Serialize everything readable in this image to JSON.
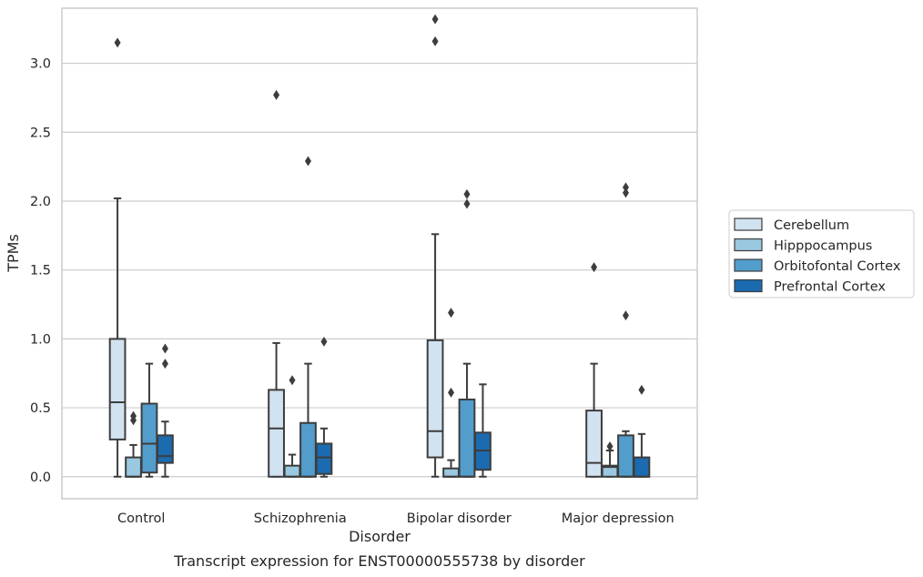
{
  "chart_data": {
    "type": "box",
    "title": "",
    "caption": "Transcript expression for ENST00000555738 by disorder",
    "xlabel": "Disorder",
    "ylabel": "TPMs",
    "categories": [
      "Control",
      "Schizophrenia",
      "Bipolar disorder",
      "Major depression"
    ],
    "ylim": [
      -0.16,
      3.4
    ],
    "yticks": [
      "0.0",
      "0.5",
      "1.0",
      "1.5",
      "2.0",
      "2.5",
      "3.0"
    ],
    "grid": "horizontal",
    "legend_position": "right",
    "series": [
      {
        "name": "Cerebellum",
        "color": "#d1e2f1",
        "boxes": [
          {
            "whislo": 0.0,
            "q1": 0.27,
            "med": 0.54,
            "q3": 1.0,
            "whishi": 2.02,
            "fliers": [
              3.15
            ]
          },
          {
            "whislo": 0.0,
            "q1": 0.0,
            "med": 0.35,
            "q3": 0.63,
            "whishi": 0.97,
            "fliers": [
              2.77
            ]
          },
          {
            "whislo": 0.0,
            "q1": 0.14,
            "med": 0.33,
            "q3": 0.99,
            "whishi": 1.76,
            "fliers": [
              3.32,
              3.16
            ]
          },
          {
            "whislo": 0.0,
            "q1": 0.0,
            "med": 0.1,
            "q3": 0.48,
            "whishi": 0.82,
            "fliers": [
              1.52
            ]
          }
        ]
      },
      {
        "name": "Hipppocampus",
        "color": "#9ac8e0",
        "boxes": [
          {
            "whislo": 0.0,
            "q1": 0.0,
            "med": 0.0,
            "q3": 0.14,
            "whishi": 0.23,
            "fliers": [
              0.44,
              0.41
            ]
          },
          {
            "whislo": 0.0,
            "q1": 0.0,
            "med": 0.0,
            "q3": 0.08,
            "whishi": 0.16,
            "fliers": [
              0.7
            ]
          },
          {
            "whislo": 0.0,
            "q1": 0.0,
            "med": 0.0,
            "q3": 0.06,
            "whishi": 0.12,
            "fliers": [
              1.19,
              0.61
            ]
          },
          {
            "whislo": 0.0,
            "q1": 0.0,
            "med": 0.07,
            "q3": 0.08,
            "whishi": 0.19,
            "fliers": [
              0.22
            ]
          }
        ]
      },
      {
        "name": "Orbitofontal Cortex",
        "color": "#529dcc",
        "boxes": [
          {
            "whislo": 0.0,
            "q1": 0.03,
            "med": 0.24,
            "q3": 0.53,
            "whishi": 0.82,
            "fliers": []
          },
          {
            "whislo": 0.0,
            "q1": 0.0,
            "med": 0.0,
            "q3": 0.39,
            "whishi": 0.82,
            "fliers": [
              2.29
            ]
          },
          {
            "whislo": 0.0,
            "q1": 0.0,
            "med": 0.0,
            "q3": 0.56,
            "whishi": 0.82,
            "fliers": [
              2.05,
              1.98
            ]
          },
          {
            "whislo": 0.0,
            "q1": 0.0,
            "med": 0.0,
            "q3": 0.3,
            "whishi": 0.33,
            "fliers": [
              2.1,
              2.06,
              1.17
            ]
          }
        ]
      },
      {
        "name": "Prefrontal Cortex",
        "color": "#1c6aaf",
        "boxes": [
          {
            "whislo": 0.0,
            "q1": 0.1,
            "med": 0.15,
            "q3": 0.3,
            "whishi": 0.4,
            "fliers": [
              0.93,
              0.82
            ]
          },
          {
            "whislo": 0.0,
            "q1": 0.02,
            "med": 0.14,
            "q3": 0.24,
            "whishi": 0.35,
            "fliers": [
              0.98
            ]
          },
          {
            "whislo": 0.0,
            "q1": 0.05,
            "med": 0.19,
            "q3": 0.32,
            "whishi": 0.67,
            "fliers": []
          },
          {
            "whislo": 0.0,
            "q1": 0.0,
            "med": 0.0,
            "q3": 0.14,
            "whishi": 0.31,
            "fliers": [
              0.63
            ]
          }
        ]
      }
    ]
  }
}
